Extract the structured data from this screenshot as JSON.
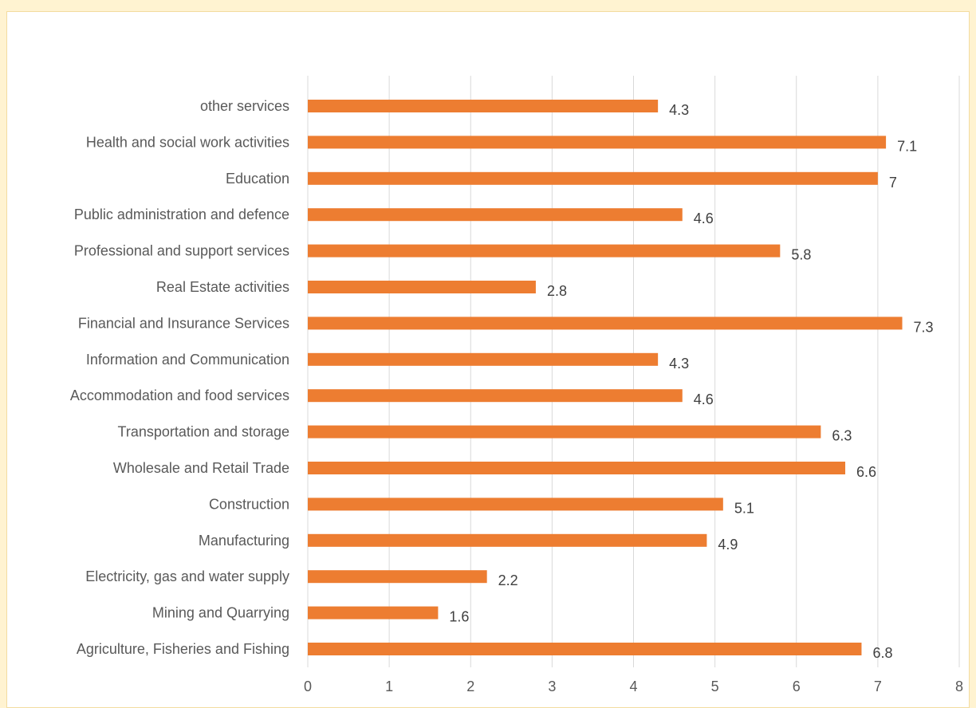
{
  "chart_data": {
    "type": "bar",
    "orientation": "horizontal",
    "categories": [
      "other services",
      "Health and social work activities",
      "Education",
      "Public administration and defence",
      "Professional and support services",
      "Real Estate activities",
      "Financial and Insurance Services",
      "Information and Communication",
      "Accommodation and food services",
      "Transportation and storage",
      "Wholesale and Retail Trade",
      "Construction",
      "Manufacturing",
      "Electricity, gas and water supply",
      "Mining and Quarrying",
      "Agriculture, Fisheries and Fishing"
    ],
    "values": [
      4.3,
      7.1,
      7,
      4.6,
      5.8,
      2.8,
      7.3,
      4.3,
      4.6,
      6.3,
      6.6,
      5.1,
      4.9,
      2.2,
      1.6,
      6.8
    ],
    "value_labels": [
      "4.3",
      "7.1",
      "7",
      "4.6",
      "5.8",
      "2.8",
      "7.3",
      "4.3",
      "4.6",
      "6.3",
      "6.6",
      "5.1",
      "4.9",
      "2.2",
      "1.6",
      "6.8"
    ],
    "xlim": [
      0,
      8
    ],
    "x_ticks": [
      "0",
      "1",
      "2",
      "3",
      "4",
      "5",
      "6",
      "7",
      "8"
    ],
    "grid": "vertical",
    "legend": "none",
    "title": "",
    "xlabel": "",
    "ylabel": "",
    "bar_color": "#ed7d31",
    "grid_color": "#d9d9d9"
  }
}
